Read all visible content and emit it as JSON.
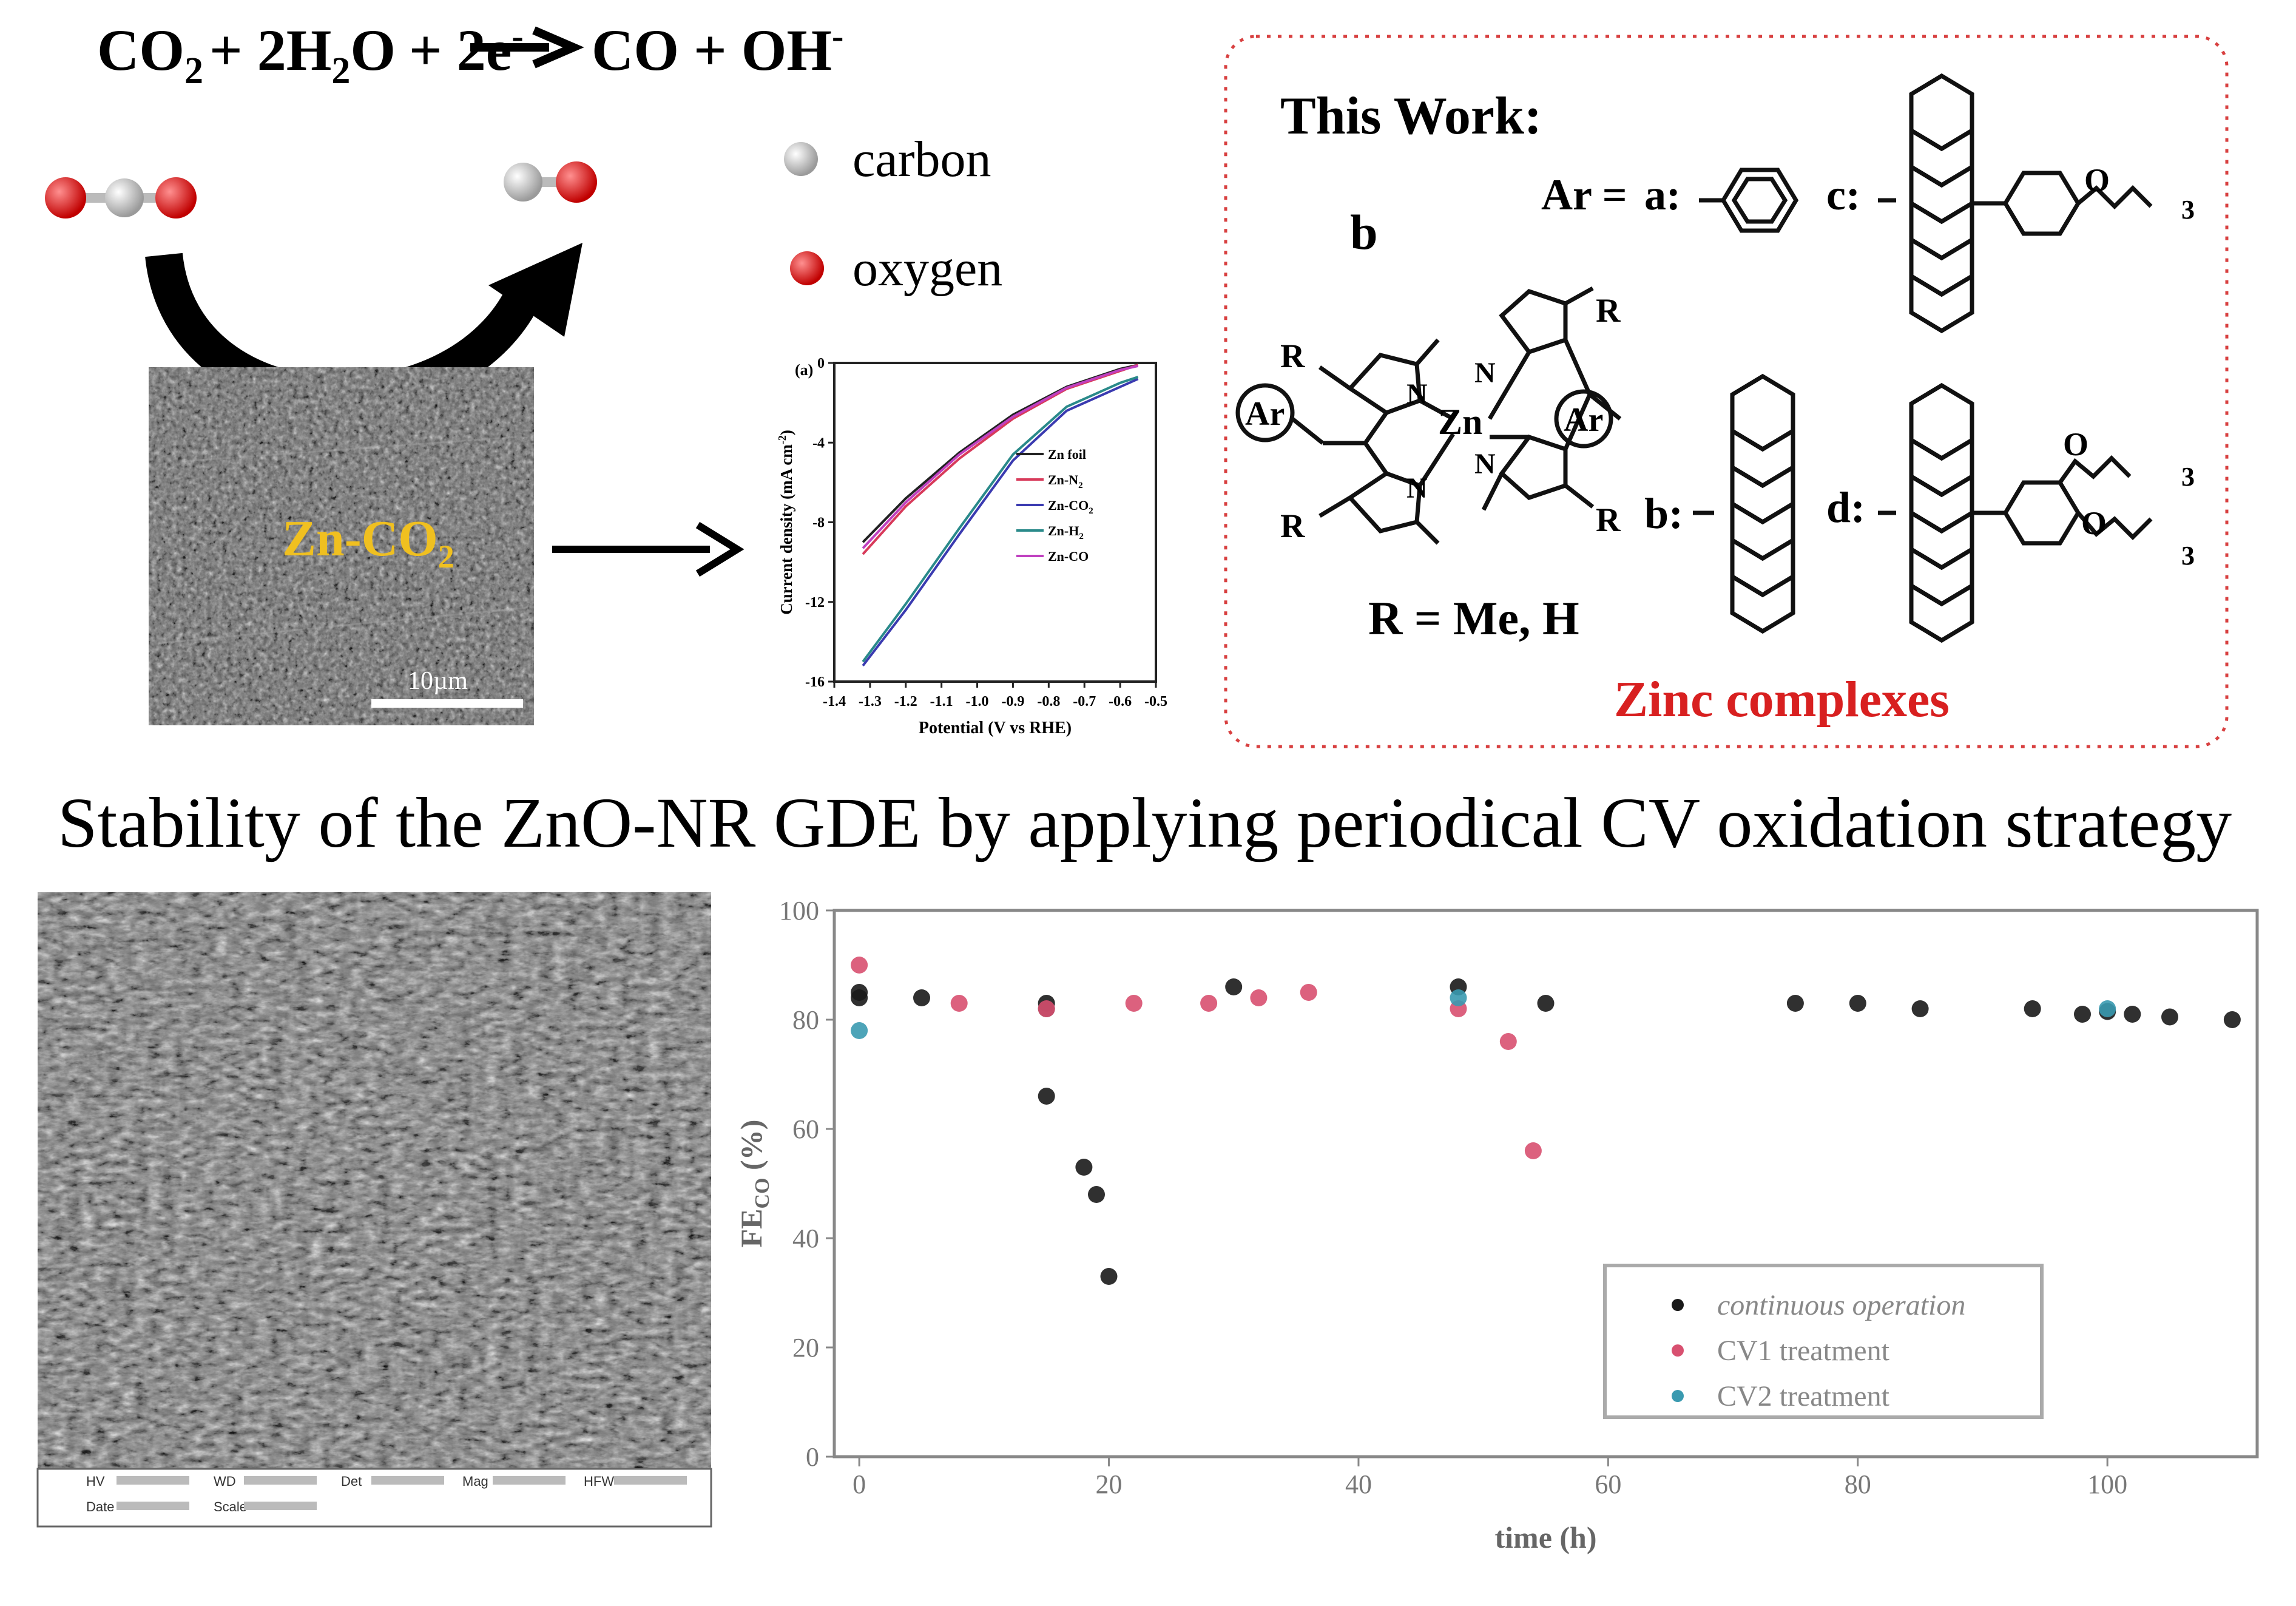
{
  "equation": {
    "left": "CO",
    "left_sub": "2",
    "plus_water": "+ 2H",
    "water_sub": "2",
    "water_o": "O",
    "electrons": "+ 2e",
    "e_sup": "-",
    "right": "CO + OH",
    "right_sup": "-"
  },
  "legend_atoms": {
    "carbon": "carbon",
    "oxygen": "oxygen",
    "carbon_color": "#c8c8c8",
    "oxygen_color": "#e01818"
  },
  "sem_top": {
    "label": "Zn-CO",
    "label_sub": "2",
    "label_color": "#f0c020",
    "scale": "10µm"
  },
  "lsv_chart": {
    "panel": "(a)",
    "xlabel": "Potential (V vs RHE)",
    "ylabel": "Current density (mA cm",
    "ylabel_sup": "-2",
    "ylabel_close": ")",
    "xticks": [
      "-1.4",
      "-1.3",
      "-1.2",
      "-1.1",
      "-1.0",
      "-0.9",
      "-0.8",
      "-0.7",
      "-0.6",
      "-0.5"
    ],
    "yticks": [
      "0",
      "-4",
      "-8",
      "-12",
      "-16"
    ],
    "legend": [
      "Zn foil",
      "Zn-N",
      "Zn-CO",
      "Zn-H",
      "Zn-CO"
    ],
    "legend_subs": [
      "",
      "2",
      "2",
      "2",
      ""
    ],
    "colors": [
      "#222222",
      "#d83a5a",
      "#3a3ab0",
      "#2a8a8a",
      "#c040c0"
    ]
  },
  "zinc_panel": {
    "heading": "This Work:",
    "panel_letter": "b",
    "ar_label": "Ar =",
    "ar_circle": "Ar",
    "metal": "Zn",
    "pyrrole_n": "N",
    "sub_r": "R",
    "r_def": "R = Me, H",
    "opt_a": "a:",
    "opt_b": "b:",
    "opt_c": "c:",
    "opt_d": "d:",
    "ether_o": "O",
    "ether_sub": "3",
    "caption": "Zinc complexes",
    "caption_color": "#d82020",
    "border_color": "#d84040"
  },
  "stability_title": "Stability of the ZnO-NR GDE by applying periodical CV oxidation strategy",
  "sem_bottom": {
    "info": [
      "HV",
      "WD",
      "Det",
      "Mag",
      "HFW",
      "Date",
      "Scale"
    ]
  },
  "fe_chart": {
    "type": "scatter",
    "xlabel": "time (h)",
    "ylabel": "FE",
    "ylabel_sub": "CO",
    "ylabel_rest": " (%)",
    "xlim": [
      -2,
      112
    ],
    "ylim": [
      0,
      100
    ],
    "xticks": [
      0,
      20,
      40,
      60,
      80,
      100
    ],
    "yticks": [
      0,
      20,
      40,
      60,
      80,
      100
    ],
    "series": [
      {
        "name": "continuous operation",
        "color": "#1a1a1a",
        "points": [
          [
            0,
            84
          ],
          [
            0,
            85
          ],
          [
            5,
            84
          ],
          [
            15,
            83
          ],
          [
            15,
            82
          ],
          [
            15,
            66
          ],
          [
            18,
            53
          ],
          [
            19,
            48
          ],
          [
            20,
            33
          ],
          [
            30,
            86
          ],
          [
            48,
            86
          ],
          [
            55,
            83
          ],
          [
            75,
            83
          ],
          [
            80,
            83
          ],
          [
            85,
            82
          ],
          [
            94,
            82
          ],
          [
            98,
            81
          ],
          [
            100,
            81.5
          ],
          [
            102,
            81
          ],
          [
            105,
            80.5
          ],
          [
            110,
            80
          ]
        ]
      },
      {
        "name": "CV1 treatment",
        "color": "#d85070",
        "points": [
          [
            0,
            90
          ],
          [
            8,
            83
          ],
          [
            15,
            82
          ],
          [
            22,
            83
          ],
          [
            28,
            83
          ],
          [
            32,
            84
          ],
          [
            36,
            85
          ],
          [
            48,
            82
          ],
          [
            52,
            76
          ],
          [
            54,
            56
          ]
        ]
      },
      {
        "name": "CV2 treatment",
        "color": "#3a9ab0",
        "points": [
          [
            0,
            78
          ],
          [
            48,
            84
          ],
          [
            100,
            82
          ]
        ]
      }
    ]
  }
}
